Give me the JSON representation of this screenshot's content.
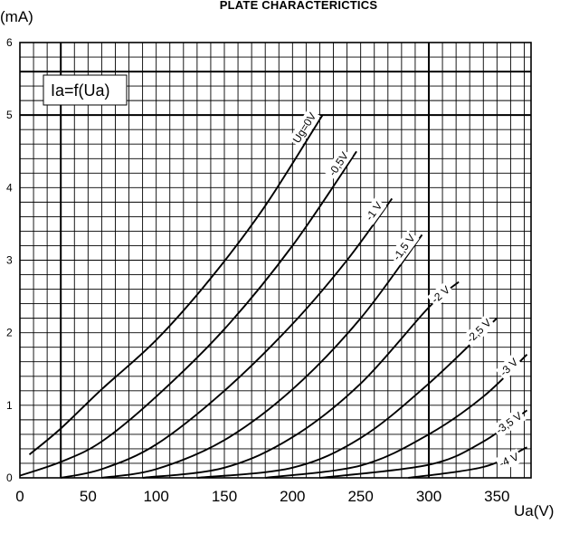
{
  "chart_data": {
    "type": "line",
    "title": "PLATE CHARACTERICTICS",
    "xlabel": "Ua(V)",
    "ylabel": "(mA)",
    "legend_box": "Ia=f(Ua)",
    "xlim": [
      0,
      375
    ],
    "ylim": [
      0,
      6
    ],
    "x_ticks": [
      "0",
      "50",
      "100",
      "150",
      "200",
      "250",
      "300",
      "350"
    ],
    "y_ticks": [
      "0",
      "1",
      "2",
      "3",
      "4",
      "5",
      "6"
    ],
    "grid": true,
    "series": [
      {
        "name": "Ug=0V",
        "points": [
          [
            7,
            0.32
          ],
          [
            30,
            0.68
          ],
          [
            60,
            1.22
          ],
          [
            100,
            1.9
          ],
          [
            140,
            2.75
          ],
          [
            180,
            3.75
          ],
          [
            222,
            5.0
          ]
        ]
      },
      {
        "name": "-0,5V",
        "points": [
          [
            0,
            0.03
          ],
          [
            30,
            0.22
          ],
          [
            60,
            0.5
          ],
          [
            100,
            1.12
          ],
          [
            150,
            2.05
          ],
          [
            200,
            3.2
          ],
          [
            247,
            4.5
          ]
        ]
      },
      {
        "name": "-1 V",
        "points": [
          [
            30,
            0.0
          ],
          [
            60,
            0.12
          ],
          [
            100,
            0.46
          ],
          [
            150,
            1.2
          ],
          [
            200,
            2.12
          ],
          [
            240,
            3.0
          ],
          [
            273,
            3.85
          ]
        ]
      },
      {
        "name": "-1,5 V",
        "points": [
          [
            60,
            0.0
          ],
          [
            100,
            0.12
          ],
          [
            150,
            0.52
          ],
          [
            200,
            1.22
          ],
          [
            250,
            2.2
          ],
          [
            295,
            3.35
          ]
        ]
      },
      {
        "name": "-2 V",
        "points": [
          [
            90,
            0.0
          ],
          [
            150,
            0.14
          ],
          [
            200,
            0.56
          ],
          [
            250,
            1.3
          ],
          [
            300,
            2.35
          ],
          [
            322,
            2.7
          ]
        ]
      },
      {
        "name": "-2,5 V",
        "points": [
          [
            130,
            0.0
          ],
          [
            200,
            0.14
          ],
          [
            250,
            0.55
          ],
          [
            300,
            1.3
          ],
          [
            350,
            2.2
          ]
        ]
      },
      {
        "name": "-3 V",
        "points": [
          [
            180,
            0.0
          ],
          [
            250,
            0.17
          ],
          [
            300,
            0.6
          ],
          [
            340,
            1.12
          ],
          [
            372,
            1.7
          ]
        ]
      },
      {
        "name": "-3,5 V",
        "points": [
          [
            220,
            0.0
          ],
          [
            300,
            0.18
          ],
          [
            340,
            0.5
          ],
          [
            372,
            0.93
          ]
        ]
      },
      {
        "name": "-4 V",
        "points": [
          [
            285,
            0.0
          ],
          [
            340,
            0.15
          ],
          [
            372,
            0.42
          ]
        ]
      }
    ]
  }
}
